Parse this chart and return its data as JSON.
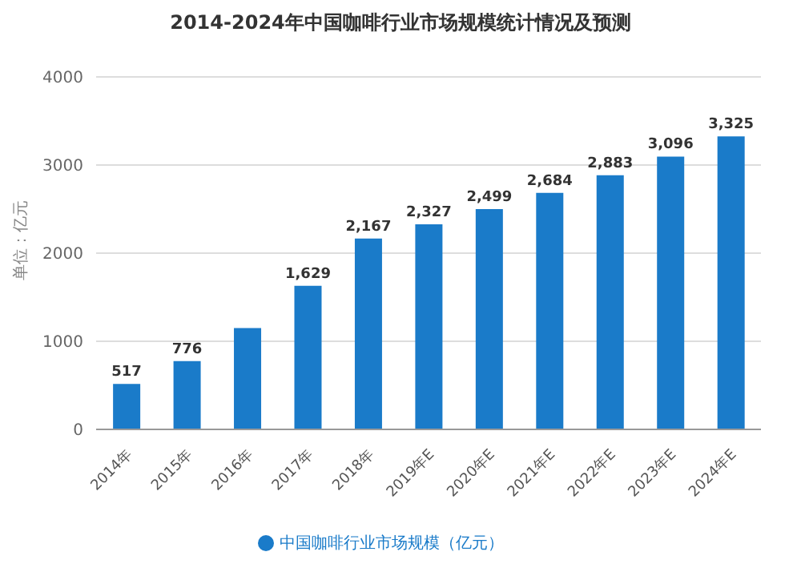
{
  "chart_data": {
    "type": "bar",
    "title": "2014-2024年中国咖啡行业市场规模统计情况及预测",
    "ylabel": "单位：亿元",
    "categories": [
      "2014年",
      "2015年",
      "2016年",
      "2017年",
      "2018年",
      "2019年E",
      "2020年E",
      "2021年E",
      "2022年E",
      "2023年E",
      "2024年E"
    ],
    "series": [
      {
        "name": "中国咖啡行业市场规模（亿元）",
        "color": "#1a7bc9",
        "values": [
          517,
          776,
          1150,
          1629,
          2167,
          2327,
          2499,
          2684,
          2883,
          3096,
          3325
        ],
        "value_labels": [
          "517",
          "776",
          null,
          "1,629",
          "2,167",
          "2,327",
          "2,499",
          "2,684",
          "2,883",
          "3,096",
          "3,325"
        ]
      }
    ],
    "ylim": [
      0,
      4000
    ],
    "yticks": [
      0,
      1000,
      2000,
      3000,
      4000
    ],
    "grid": "y",
    "legend": "bottom",
    "marker": "circle"
  }
}
